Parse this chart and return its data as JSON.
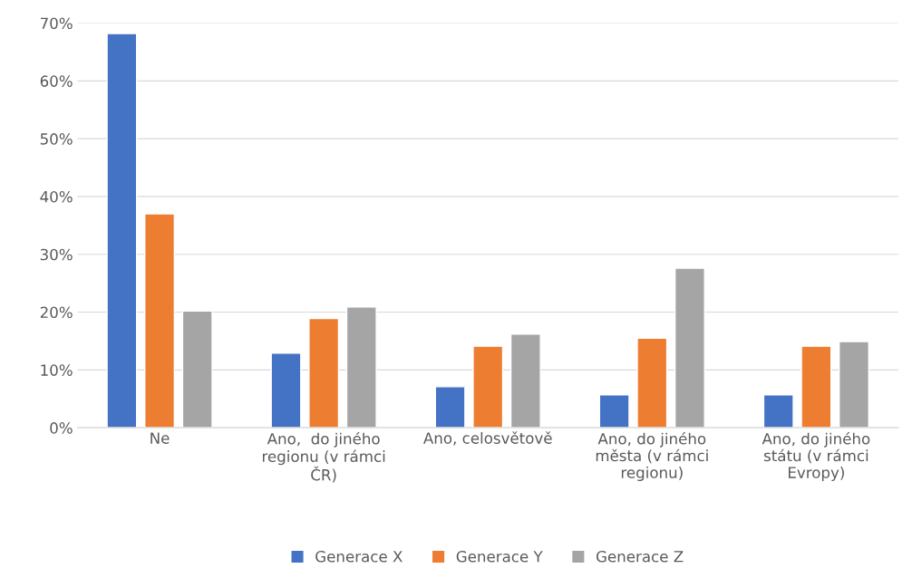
{
  "chart_data": {
    "type": "bar",
    "categories": [
      "Ne",
      "Ano,  do jiného regionu (v rámci ČR)",
      "Ano, celosvětově",
      "Ano, do jiného města (v rámci regionu)",
      "Ano, do jiného státu (v rámci Evropy)"
    ],
    "series": [
      {
        "name": "Generace X",
        "color": "#4472c4",
        "values": [
          68.2,
          12.9,
          7.1,
          5.7,
          5.7
        ]
      },
      {
        "name": "Generace Y",
        "color": "#ed7d31",
        "values": [
          37.0,
          18.9,
          14.1,
          15.5,
          14.1
        ]
      },
      {
        "name": "Generace Z",
        "color": "#a5a5a5",
        "values": [
          20.2,
          20.9,
          16.2,
          27.6,
          14.9
        ]
      }
    ],
    "ylim": [
      0,
      70
    ],
    "yticks": [
      {
        "value": 0,
        "label": "0%"
      },
      {
        "value": 10,
        "label": "10%"
      },
      {
        "value": 20,
        "label": "20%"
      },
      {
        "value": 30,
        "label": "30%"
      },
      {
        "value": 40,
        "label": "40%"
      },
      {
        "value": 50,
        "label": "50%"
      },
      {
        "value": 60,
        "label": "60%"
      },
      {
        "value": 70,
        "label": "70%"
      }
    ],
    "grid": "y",
    "legend": "bottom"
  }
}
